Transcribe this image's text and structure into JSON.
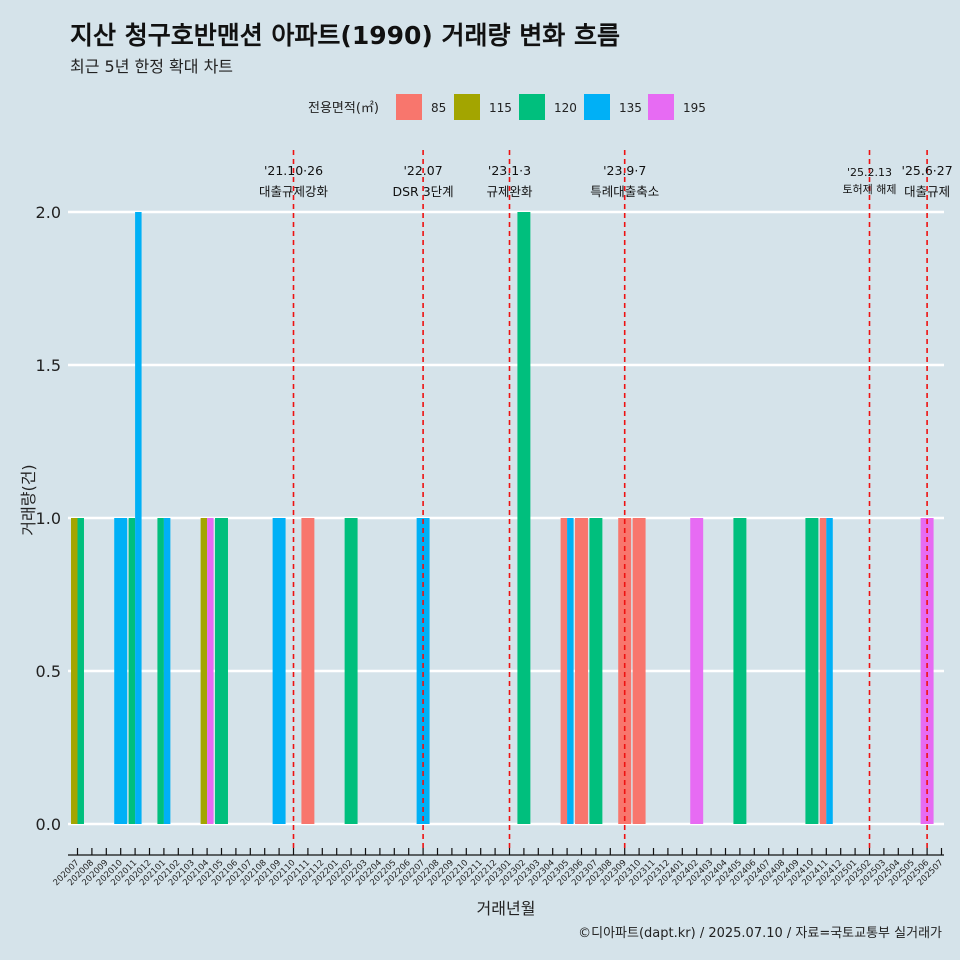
{
  "header": {
    "title": "지산 청구호반맨션 아파트(1990) 거래량 변화 흐름",
    "subtitle": "최근 5년 한정 확대 차트"
  },
  "caption": "©디아파트(dapt.kr) / 2025.07.10 / 자료=국토교통부 실거래가",
  "legend": {
    "title": "전용면적(㎡)",
    "items": [
      {
        "label": "85",
        "color": "#f8766d"
      },
      {
        "label": "115",
        "color": "#a3a500"
      },
      {
        "label": "120",
        "color": "#00bf7d"
      },
      {
        "label": "135",
        "color": "#00b0f6"
      },
      {
        "label": "195",
        "color": "#e76bf3"
      }
    ]
  },
  "chart_data": {
    "type": "bar",
    "xlabel": "거래년월",
    "ylabel": "거래량(건)",
    "ylim": [
      0,
      2
    ],
    "yticks": [
      "0.0",
      "0.5",
      "1.0",
      "1.5",
      "2.0"
    ],
    "grid": true,
    "legend_position": "top",
    "categories": [
      "202007",
      "202008",
      "202009",
      "202010",
      "202011",
      "202012",
      "202101",
      "202102",
      "202103",
      "202104",
      "202105",
      "202106",
      "202107",
      "202108",
      "202109",
      "202110",
      "202111",
      "202112",
      "202201",
      "202202",
      "202203",
      "202204",
      "202205",
      "202206",
      "202207",
      "202208",
      "202209",
      "202210",
      "202211",
      "202212",
      "202301",
      "202302",
      "202303",
      "202304",
      "202305",
      "202306",
      "202307",
      "202308",
      "202309",
      "202310",
      "202311",
      "202312",
      "202401",
      "202402",
      "202403",
      "202404",
      "202405",
      "202406",
      "202407",
      "202408",
      "202409",
      "202410",
      "202411",
      "202412",
      "202501",
      "202502",
      "202503",
      "202504",
      "202505",
      "202506",
      "202507"
    ],
    "bars": [
      {
        "month": "202007",
        "area": "115",
        "value": 1
      },
      {
        "month": "202007",
        "area": "120",
        "value": 1
      },
      {
        "month": "202010",
        "area": "135",
        "value": 1
      },
      {
        "month": "202011",
        "area": "120",
        "value": 1
      },
      {
        "month": "202011",
        "area": "135",
        "value": 2
      },
      {
        "month": "202101",
        "area": "120",
        "value": 1
      },
      {
        "month": "202101",
        "area": "135",
        "value": 1
      },
      {
        "month": "202104",
        "area": "115",
        "value": 1
      },
      {
        "month": "202104",
        "area": "195",
        "value": 1
      },
      {
        "month": "202105",
        "area": "120",
        "value": 1
      },
      {
        "month": "202109",
        "area": "135",
        "value": 1
      },
      {
        "month": "202111",
        "area": "85",
        "value": 1
      },
      {
        "month": "202202",
        "area": "120",
        "value": 1
      },
      {
        "month": "202207",
        "area": "135",
        "value": 1
      },
      {
        "month": "202302",
        "area": "120",
        "value": 2
      },
      {
        "month": "202305",
        "area": "85",
        "value": 1
      },
      {
        "month": "202305",
        "area": "135",
        "value": 1
      },
      {
        "month": "202306",
        "area": "85",
        "value": 1
      },
      {
        "month": "202307",
        "area": "120",
        "value": 1
      },
      {
        "month": "202309",
        "area": "85",
        "value": 1
      },
      {
        "month": "202310",
        "area": "85",
        "value": 1
      },
      {
        "month": "202402",
        "area": "195",
        "value": 1
      },
      {
        "month": "202405",
        "area": "120",
        "value": 1
      },
      {
        "month": "202410",
        "area": "120",
        "value": 1
      },
      {
        "month": "202411",
        "area": "85",
        "value": 1
      },
      {
        "month": "202411",
        "area": "135",
        "value": 1
      },
      {
        "month": "202506",
        "area": "195",
        "value": 1
      }
    ],
    "events": [
      {
        "month": "202110",
        "date": "'21.10·26",
        "label": "대출규제강화"
      },
      {
        "month": "202207",
        "date": "'22.07",
        "label": "DSR 3단계"
      },
      {
        "month": "202301",
        "date": "'23.1·3",
        "label": "규제완화"
      },
      {
        "month": "202309",
        "date": "'23.9·7",
        "label": "특례대출축소"
      },
      {
        "month": "202502",
        "date": "'25.2.13",
        "label": "토허제 해제"
      },
      {
        "month": "202506",
        "date": "'25.6·27",
        "label": "대출규제"
      }
    ]
  }
}
